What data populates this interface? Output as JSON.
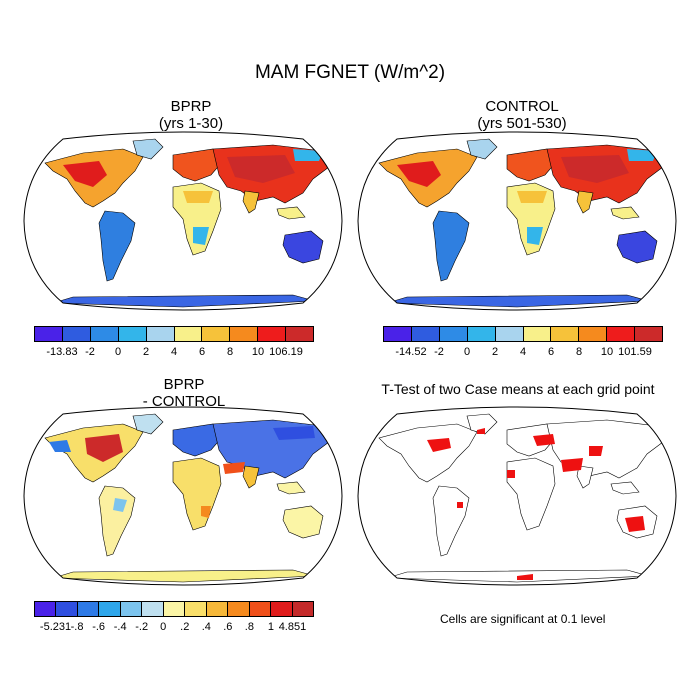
{
  "title": "MAM FGNET (W/m^2)",
  "panels": {
    "top_left": {
      "title_line1": "BPRP",
      "title_line2": "(yrs 1-30)"
    },
    "top_right": {
      "title_line1": "CONTROL",
      "title_line2": "(yrs 501-530)"
    },
    "bottom_left": {
      "title_line1": "BPRP",
      "title_line2": "- CONTROL"
    },
    "bottom_right": {
      "title": "T-Test of two Case means at each grid point"
    }
  },
  "colorbars": {
    "top_left": {
      "labels": [
        "-13.83",
        "-2",
        "0",
        "2",
        "4",
        "6",
        "8",
        "10",
        "106.19"
      ],
      "colors": [
        "#4a22e8",
        "#2f5ce0",
        "#2e8be6",
        "#33b5ea",
        "#a9d4ee",
        "#f8f08a",
        "#f6c23a",
        "#f58a1e",
        "#ee1c1c",
        "#cc2a2a"
      ]
    },
    "top_right": {
      "labels": [
        "-14.52",
        "-2",
        "0",
        "2",
        "4",
        "6",
        "8",
        "10",
        "101.59"
      ],
      "colors": [
        "#4a22e8",
        "#2f5ce0",
        "#2e8be6",
        "#33b5ea",
        "#a9d4ee",
        "#f8f08a",
        "#f6c23a",
        "#f58a1e",
        "#ee1c1c",
        "#cc2a2a"
      ]
    },
    "bottom_left": {
      "labels": [
        "-5.231",
        "-.8",
        "-.6",
        "-.4",
        "-.2",
        "0",
        ".2",
        ".4",
        ".6",
        ".8",
        "1",
        "4.851"
      ],
      "colors": [
        "#4a22e8",
        "#2f4fe0",
        "#2e7ae6",
        "#2ea6ea",
        "#7cc4ee",
        "#bfe0f0",
        "#fbf5a6",
        "#f9df6a",
        "#f6b83a",
        "#f58a1e",
        "#f0501a",
        "#e01c1c",
        "#c42a2a"
      ]
    }
  },
  "note": "Cells are significant at 0.1 level"
}
